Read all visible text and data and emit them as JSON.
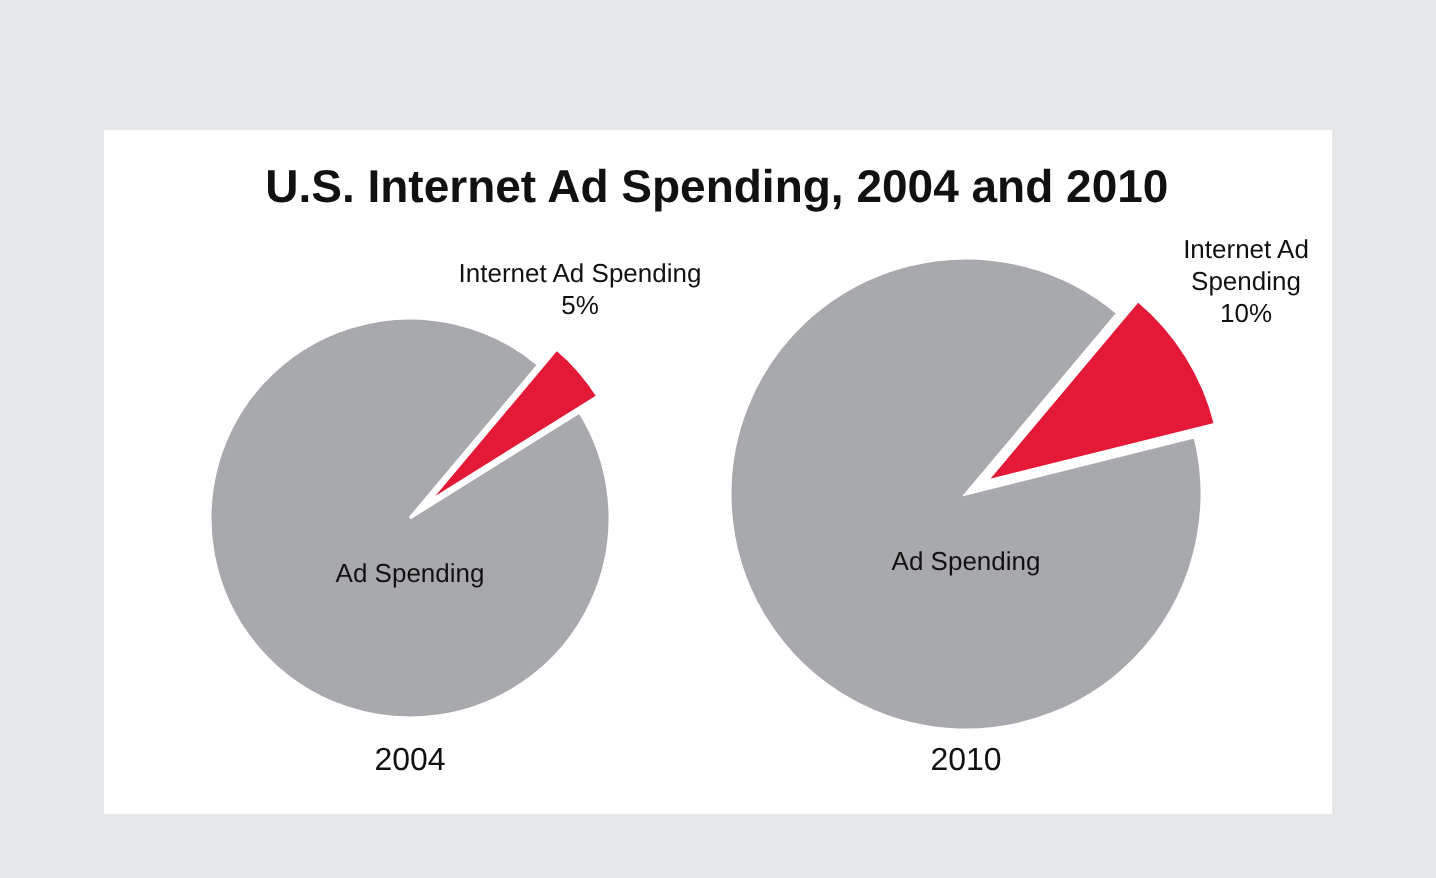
{
  "chart_data": [
    {
      "type": "pie",
      "title": "U.S. Internet Ad Spending, 2004 and 2010",
      "xlabel": "2004",
      "categories": [
        "Ad Spending",
        "Internet Ad Spending"
      ],
      "values": [
        95,
        5
      ],
      "colors": [
        "#a7a9ac",
        "#e31937"
      ],
      "value_labels": [
        null,
        "5%"
      ]
    },
    {
      "type": "pie",
      "xlabel": "2010",
      "categories": [
        "Ad Spending",
        "Internet Ad Spending"
      ],
      "values": [
        90,
        10
      ],
      "colors": [
        "#a7a9ac",
        "#e31937"
      ],
      "value_labels": [
        null,
        "10%"
      ]
    }
  ]
}
